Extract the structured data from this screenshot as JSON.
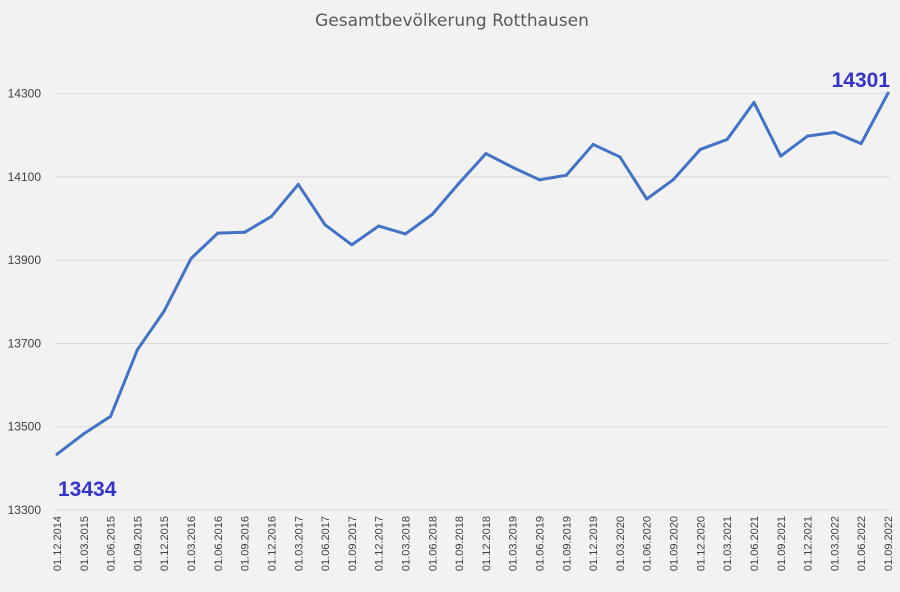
{
  "chart_data": {
    "type": "line",
    "title": "Gesamtbevölkerung Rotthausen",
    "xlabel": "",
    "ylabel": "",
    "categories": [
      "01.12.2014",
      "01.03.2015",
      "01.06.2015",
      "01.09.2015",
      "01.12.2015",
      "01.03.2016",
      "01.06.2016",
      "01.09.2016",
      "01.12.2016",
      "01.03.2017",
      "01.06.2017",
      "01.09.2017",
      "01.12.2017",
      "01.03.2018",
      "01.06.2018",
      "01.09.2018",
      "01.12.2018",
      "01.03.2019",
      "01.06.2019",
      "01.09.2019",
      "01.12.2019",
      "01.03.2020",
      "01.06.2020",
      "01.09.2020",
      "01.12.2020",
      "01.03.2021",
      "01.06.2021",
      "01.09.2021",
      "01.12.2021",
      "01.03.2022",
      "01.06.2022",
      "01.09.2022"
    ],
    "series": [
      {
        "name": "",
        "color": "#4472c4",
        "values": [
          13434,
          13483,
          13525,
          13685,
          13778,
          13904,
          13965,
          13967,
          14005,
          14082,
          13985,
          13937,
          13982,
          13963,
          14010,
          14085,
          14156,
          14123,
          14093,
          14104,
          14178,
          14148,
          14047,
          14094,
          14166,
          14190,
          14279,
          14150,
          14198,
          14207,
          14180,
          14301
        ]
      }
    ],
    "ylim": [
      13300,
      14400
    ],
    "yticks": [
      13300,
      13500,
      13700,
      13900,
      14100,
      14300
    ],
    "grid": true,
    "legend": "none",
    "data_labels": [
      {
        "index": 0,
        "text": "13434",
        "color": "#3333cc"
      },
      {
        "index": 31,
        "text": "14301",
        "color": "#3333cc"
      }
    ],
    "colors": {
      "background": "#f2f2f2",
      "plot_background": "#f2f2f2",
      "grid": "#d9d9d9",
      "line": "#4472c4",
      "label": "#3333cc"
    }
  }
}
